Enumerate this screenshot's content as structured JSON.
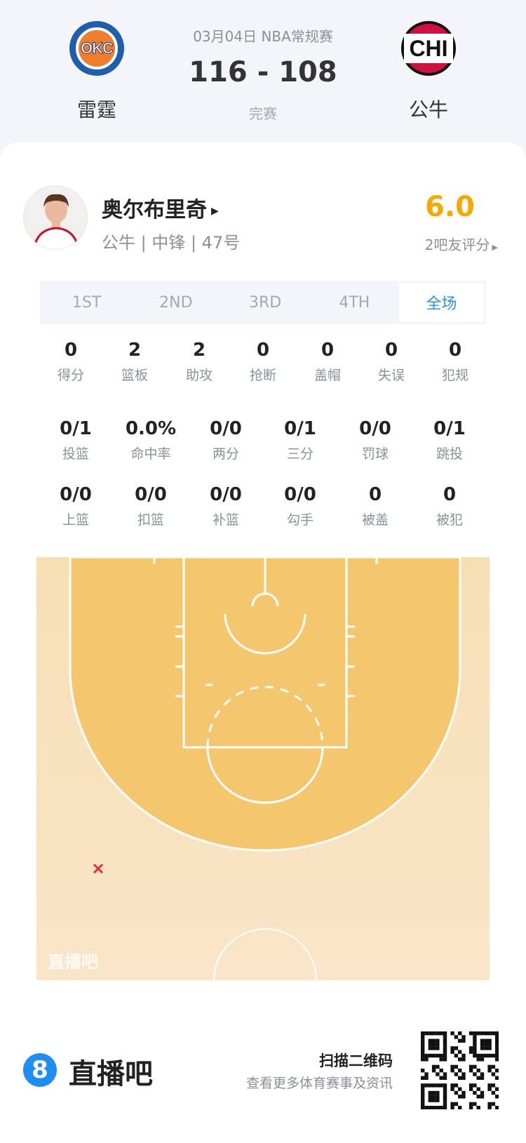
{
  "header": {
    "date_league": "03月04日 NBA常规赛",
    "score": "116 - 108",
    "status": "完赛",
    "home": {
      "name": "雷霆",
      "logo_text": "OKC"
    },
    "away": {
      "name": "公牛",
      "logo_text": "CHI"
    }
  },
  "player": {
    "name": "奥尔布里奇",
    "info": "公牛 | 中锋 | 47号",
    "rating": "6.0",
    "rating_color": "#f5a800",
    "rating_label": "2吧友评分"
  },
  "tabs": [
    {
      "label": "1ST"
    },
    {
      "label": "2ND"
    },
    {
      "label": "3RD"
    },
    {
      "label": "4TH"
    },
    {
      "label": "全场",
      "active": true
    }
  ],
  "stats_row1": [
    {
      "v": "0",
      "l": "得分"
    },
    {
      "v": "2",
      "l": "篮板"
    },
    {
      "v": "2",
      "l": "助攻"
    },
    {
      "v": "0",
      "l": "抢断"
    },
    {
      "v": "0",
      "l": "盖帽"
    },
    {
      "v": "0",
      "l": "失误"
    },
    {
      "v": "0",
      "l": "犯规"
    }
  ],
  "stats_row2": [
    {
      "v": "0/1",
      "l": "投篮"
    },
    {
      "v": "0.0%",
      "l": "命中率"
    },
    {
      "v": "0/0",
      "l": "两分"
    },
    {
      "v": "0/1",
      "l": "三分"
    },
    {
      "v": "0/0",
      "l": "罚球"
    },
    {
      "v": "0/1",
      "l": "跳投"
    }
  ],
  "stats_row3": [
    {
      "v": "0/0",
      "l": "上篮"
    },
    {
      "v": "0/0",
      "l": "扣篮"
    },
    {
      "v": "0/0",
      "l": "补篮"
    },
    {
      "v": "0/0",
      "l": "勾手"
    },
    {
      "v": "0",
      "l": "被盖"
    },
    {
      "v": "0",
      "l": "被犯"
    }
  ],
  "shot_chart": {
    "watermark": "直播吧",
    "shots": [
      {
        "result": "miss",
        "marker": "x",
        "color": "#e0303a"
      }
    ]
  },
  "footer": {
    "brand": "直播吧",
    "brand_icon": "8",
    "scan_title": "扫描二维码",
    "scan_sub": "查看更多体育赛事及资讯"
  }
}
